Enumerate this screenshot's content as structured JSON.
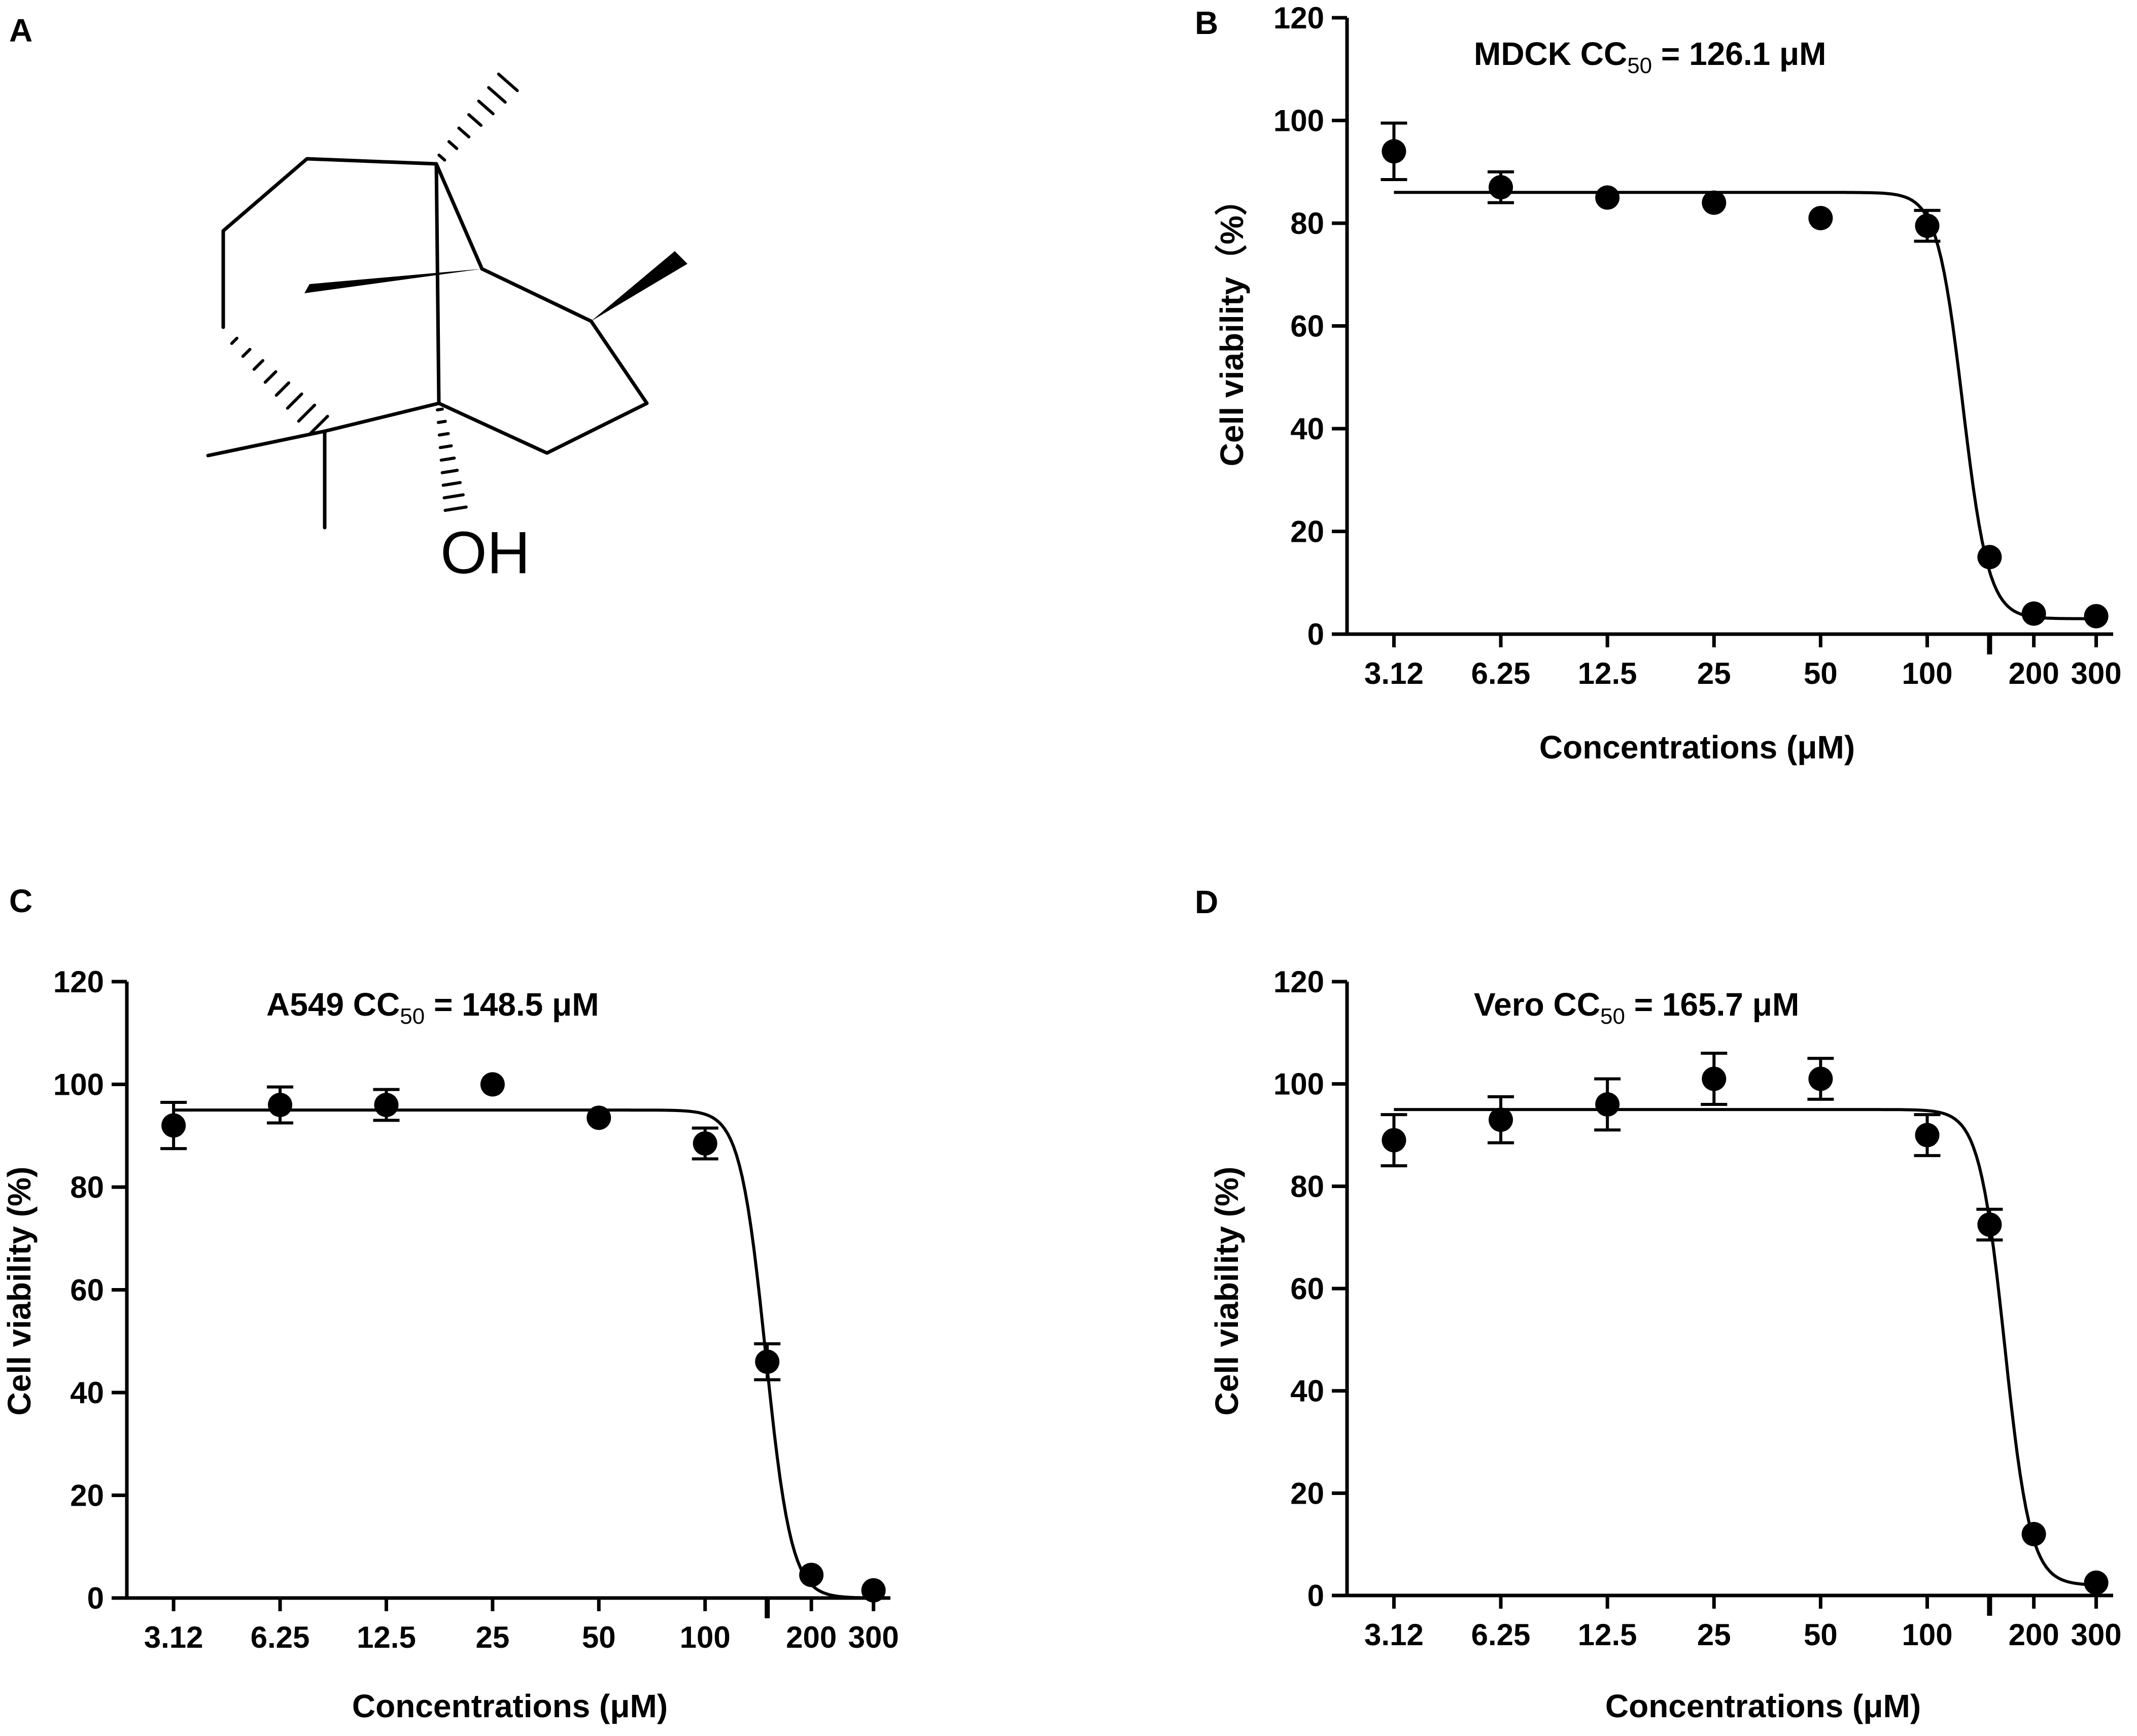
{
  "panels": {
    "A": {
      "letter": "A",
      "structure": {
        "hydroxyl_label": "OH"
      }
    },
    "B": {
      "letter": "B"
    },
    "C": {
      "letter": "C"
    },
    "D": {
      "letter": "D"
    }
  },
  "chart_data": [
    {
      "panel": "B",
      "type": "scatter",
      "title_prefix": "MDCK  CC",
      "title_sub": "50",
      "title_suffix": " = 126.1 μM",
      "xlabel": "Concentrations (μM)",
      "ylabel": "Cell viability（%）",
      "x_scale": "log",
      "xticks": [
        3.12,
        6.25,
        12.5,
        25,
        50,
        100,
        200,
        300
      ],
      "xtick_labels": [
        "3.12",
        "6.25",
        "12.5",
        "25",
        "50",
        "100",
        "200",
        "300"
      ],
      "yticks": [
        0,
        20,
        40,
        60,
        80,
        100,
        120
      ],
      "ytick_labels": [
        "0",
        "20",
        "40",
        "60",
        "80",
        "100",
        "120"
      ],
      "ylim": [
        0,
        120
      ],
      "points": [
        {
          "x": 3.12,
          "y": 94,
          "err": 5.5
        },
        {
          "x": 6.25,
          "y": 87,
          "err": 3
        },
        {
          "x": 12.5,
          "y": 85,
          "err": 0
        },
        {
          "x": 25,
          "y": 84,
          "err": 0
        },
        {
          "x": 50,
          "y": 81,
          "err": 0
        },
        {
          "x": 100,
          "y": 79.5,
          "err": 3
        },
        {
          "x": 150,
          "y": 15,
          "err": 0
        },
        {
          "x": 200,
          "y": 4,
          "err": 0
        },
        {
          "x": 300,
          "y": 3.5,
          "err": 0
        }
      ],
      "fit": {
        "top": 86,
        "bottom": 3,
        "cc50": 126.1,
        "hill": 12
      }
    },
    {
      "panel": "C",
      "type": "scatter",
      "title_prefix": "A549  CC",
      "title_sub": "50",
      "title_suffix": " = 148.5 μM",
      "xlabel": "Concentrations (μM)",
      "ylabel": "Cell viability (%)",
      "x_scale": "log",
      "xticks": [
        3.12,
        6.25,
        12.5,
        25,
        50,
        100,
        200,
        300
      ],
      "xtick_labels": [
        "3.12",
        "6.25",
        "12.5",
        "25",
        "50",
        "100",
        "200",
        "300"
      ],
      "yticks": [
        0,
        20,
        40,
        60,
        80,
        100,
        120
      ],
      "ytick_labels": [
        "0",
        "20",
        "40",
        "60",
        "80",
        "100",
        "120"
      ],
      "ylim": [
        0,
        120
      ],
      "points": [
        {
          "x": 3.12,
          "y": 92,
          "err": 4.5
        },
        {
          "x": 6.25,
          "y": 96,
          "err": 3.5
        },
        {
          "x": 12.5,
          "y": 96,
          "err": 3
        },
        {
          "x": 25,
          "y": 100,
          "err": 0
        },
        {
          "x": 50,
          "y": 93.5,
          "err": 0
        },
        {
          "x": 100,
          "y": 88.5,
          "err": 3
        },
        {
          "x": 150,
          "y": 46,
          "err": 3.5
        },
        {
          "x": 200,
          "y": 4.5,
          "err": 0
        },
        {
          "x": 300,
          "y": 1.5,
          "err": 0
        }
      ],
      "fit": {
        "top": 95,
        "bottom": 0,
        "cc50": 148.5,
        "hill": 12
      }
    },
    {
      "panel": "D",
      "type": "scatter",
      "title_prefix": "Vero  CC",
      "title_sub": "50",
      "title_suffix": " = 165.7 μM",
      "xlabel": "Concentrations (μM)",
      "ylabel": "Cell viability (%)",
      "x_scale": "log",
      "xticks": [
        3.12,
        6.25,
        12.5,
        25,
        50,
        100,
        200,
        300
      ],
      "xtick_labels": [
        "3.12",
        "6.25",
        "12.5",
        "25",
        "50",
        "100",
        "200",
        "300"
      ],
      "yticks": [
        0,
        20,
        40,
        60,
        80,
        100,
        120
      ],
      "ytick_labels": [
        "0",
        "20",
        "40",
        "60",
        "80",
        "100",
        "120"
      ],
      "ylim": [
        0,
        120
      ],
      "points": [
        {
          "x": 3.12,
          "y": 89,
          "err": 5
        },
        {
          "x": 6.25,
          "y": 93,
          "err": 4.5
        },
        {
          "x": 12.5,
          "y": 96,
          "err": 5
        },
        {
          "x": 25,
          "y": 101,
          "err": 5
        },
        {
          "x": 50,
          "y": 101,
          "err": 4
        },
        {
          "x": 100,
          "y": 90,
          "err": 4
        },
        {
          "x": 150,
          "y": 72.5,
          "err": 3
        },
        {
          "x": 200,
          "y": 12,
          "err": 0
        },
        {
          "x": 300,
          "y": 2.5,
          "err": 0
        }
      ],
      "fit": {
        "top": 95,
        "bottom": 2,
        "cc50": 165.7,
        "hill": 12
      }
    }
  ]
}
